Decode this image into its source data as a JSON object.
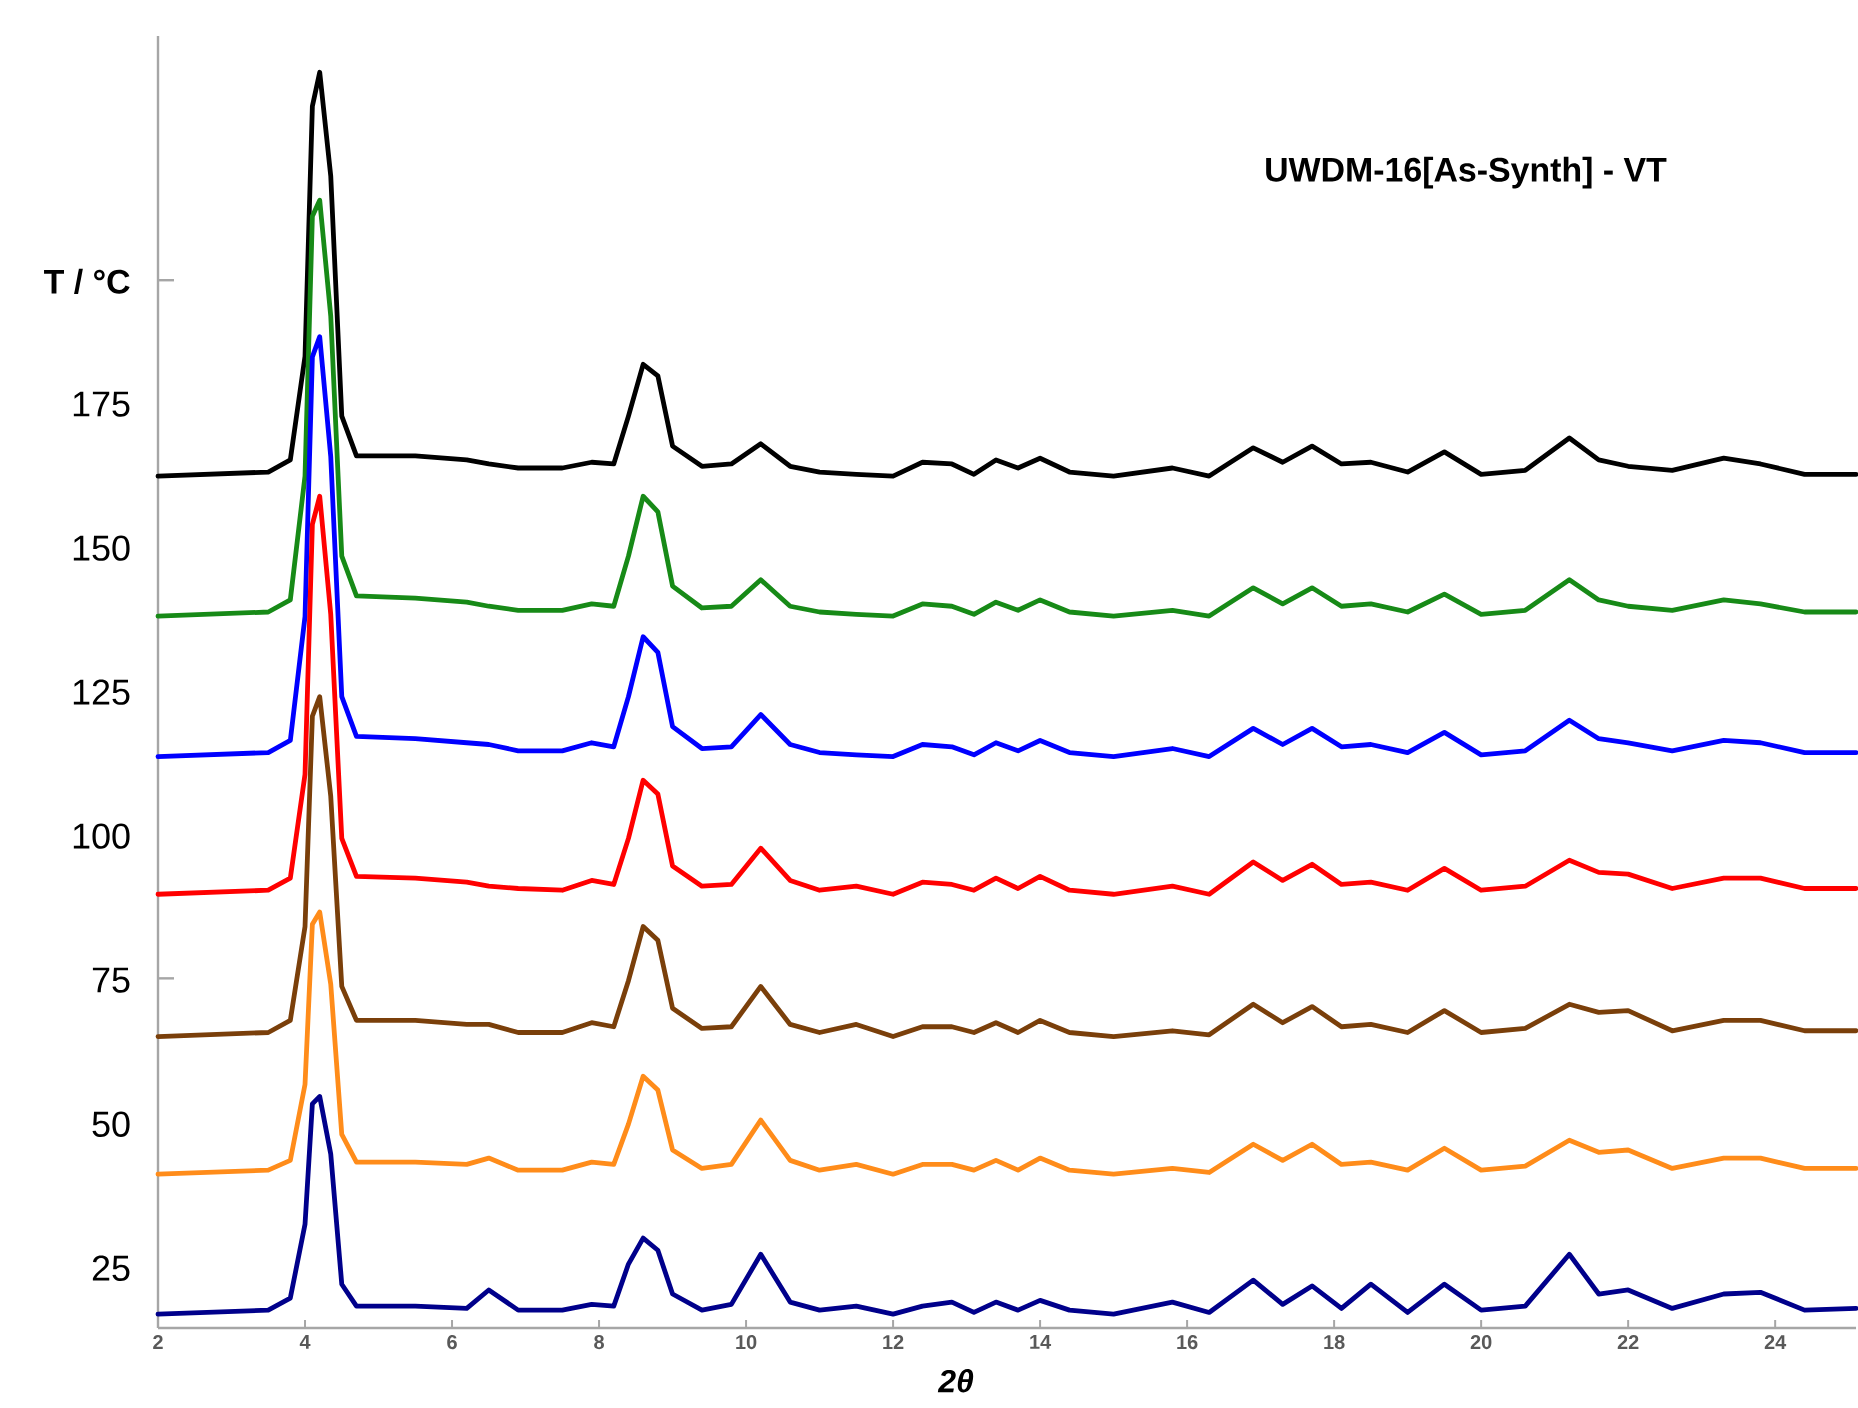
{
  "chart_data": {
    "type": "line",
    "title": "UWDM-16[As-Synth] - VT",
    "xlabel": "2θ",
    "ylabel": "T / °C",
    "xlim": [
      2,
      25.1
    ],
    "xticks": [
      2,
      4,
      6,
      8,
      10,
      12,
      14,
      16,
      18,
      20,
      22,
      24
    ],
    "ylim": [
      16.7,
      241
    ],
    "yticks": [
      25,
      50,
      {
        "value": 77.4,
        "label": null
      },
      75,
      100,
      125,
      150,
      175,
      {
        "value": 198.6,
        "label": null
      }
    ],
    "x": [
      2,
      3.5,
      3.8,
      4.0,
      4.1,
      4.2,
      4.35,
      4.5,
      4.7,
      5.5,
      6.2,
      6.5,
      6.9,
      7.5,
      7.9,
      8.2,
      8.4,
      8.6,
      8.8,
      9.0,
      9.4,
      9.8,
      10.2,
      10.6,
      11.0,
      11.5,
      12.0,
      12.4,
      12.8,
      13.1,
      13.4,
      13.7,
      14.0,
      14.4,
      15.0,
      15.8,
      16.3,
      16.9,
      17.3,
      17.7,
      18.1,
      18.5,
      19.0,
      19.5,
      20.0,
      20.6,
      21.2,
      21.6,
      22.0,
      22.6,
      23.3,
      23.8,
      24.4,
      25.1
    ],
    "series": [
      {
        "color": "#000000",
        "values": [
          164.6,
          165.3,
          167.4,
          185.4,
          228.8,
          234.7,
          216.7,
          175.0,
          168.1,
          168.1,
          167.4,
          166.7,
          166.0,
          166.0,
          167.0,
          166.7,
          175.0,
          184.0,
          182.0,
          169.8,
          166.3,
          166.7,
          170.2,
          166.3,
          165.3,
          164.9,
          164.6,
          167.0,
          166.7,
          164.9,
          167.4,
          166.0,
          167.7,
          165.3,
          164.6,
          166.0,
          164.6,
          169.5,
          167.0,
          169.8,
          166.7,
          167.0,
          165.3,
          168.8,
          164.9,
          165.6,
          171.2,
          167.4,
          166.3,
          165.6,
          167.7,
          166.7,
          164.9,
          164.9
        ]
      },
      {
        "color": "#178a17",
        "values": [
          140.3,
          141.0,
          143.1,
          164.6,
          209.7,
          212.5,
          192.4,
          150.7,
          143.8,
          143.4,
          142.7,
          142.0,
          141.3,
          141.3,
          142.4,
          142.0,
          150.7,
          161.1,
          158.4,
          145.5,
          141.7,
          142.0,
          146.6,
          142.0,
          141.0,
          140.6,
          140.3,
          142.4,
          142.0,
          140.6,
          142.7,
          141.3,
          143.1,
          141.0,
          140.3,
          141.3,
          140.3,
          145.2,
          142.4,
          145.2,
          142.0,
          142.4,
          141.0,
          144.1,
          140.6,
          141.3,
          146.6,
          143.1,
          142.0,
          141.3,
          143.1,
          142.4,
          141.0,
          141.0
        ]
      },
      {
        "color": "#0000ff",
        "values": [
          115.9,
          116.6,
          118.7,
          140.2,
          185.3,
          188.8,
          168.0,
          126.3,
          119.4,
          119.0,
          118.3,
          118.0,
          116.9,
          116.9,
          118.3,
          117.6,
          126.3,
          136.7,
          134.0,
          121.1,
          117.3,
          117.6,
          123.2,
          118.0,
          116.6,
          116.2,
          115.9,
          118.0,
          117.6,
          116.2,
          118.3,
          116.9,
          118.7,
          116.6,
          115.9,
          117.3,
          115.9,
          120.8,
          118.0,
          120.8,
          117.6,
          118.0,
          116.6,
          120.1,
          116.2,
          116.9,
          122.2,
          119.0,
          118.3,
          116.9,
          118.7,
          118.3,
          116.6,
          116.6
        ]
      },
      {
        "color": "#ff0000",
        "values": [
          92.0,
          92.7,
          94.8,
          112.8,
          156.2,
          161.1,
          140.6,
          101.7,
          95.1,
          94.8,
          94.1,
          93.4,
          93.0,
          92.7,
          94.4,
          93.7,
          101.7,
          111.8,
          109.4,
          96.9,
          93.4,
          93.7,
          100.0,
          94.4,
          92.7,
          93.4,
          92.0,
          94.1,
          93.7,
          92.7,
          94.8,
          93.0,
          95.1,
          92.7,
          92.0,
          93.4,
          92.0,
          97.6,
          94.4,
          97.2,
          93.7,
          94.1,
          92.7,
          96.5,
          92.7,
          93.4,
          97.9,
          95.8,
          95.5,
          93.0,
          94.8,
          94.8,
          93.0,
          93.0
        ]
      },
      {
        "color": "#7a3f0a",
        "values": [
          67.3,
          68.0,
          70.1,
          86.4,
          122.9,
          126.3,
          109.0,
          76.0,
          70.1,
          70.1,
          69.4,
          69.4,
          68.0,
          68.0,
          69.7,
          69.0,
          77.0,
          86.4,
          84.0,
          72.2,
          68.7,
          69.0,
          76.0,
          69.4,
          68.0,
          69.4,
          67.3,
          69.0,
          69.0,
          68.0,
          69.7,
          68.0,
          70.1,
          68.0,
          67.3,
          68.3,
          67.6,
          72.9,
          69.7,
          72.5,
          69.0,
          69.4,
          68.0,
          71.8,
          68.0,
          68.7,
          72.9,
          71.5,
          71.8,
          68.3,
          70.1,
          70.1,
          68.3,
          68.3
        ]
      },
      {
        "color": "#ff8c1a",
        "values": [
          43.4,
          44.1,
          45.8,
          59.0,
          86.8,
          88.9,
          76.4,
          50.3,
          45.5,
          45.5,
          45.1,
          46.2,
          44.1,
          44.1,
          45.5,
          45.1,
          52.1,
          60.4,
          58.0,
          47.6,
          44.4,
          45.1,
          52.8,
          45.8,
          44.1,
          45.1,
          43.4,
          45.1,
          45.1,
          44.1,
          45.8,
          44.1,
          46.2,
          44.1,
          43.4,
          44.4,
          43.7,
          48.6,
          45.8,
          48.6,
          45.1,
          45.5,
          44.1,
          47.9,
          44.1,
          44.8,
          49.3,
          47.2,
          47.6,
          44.4,
          46.2,
          46.2,
          44.4,
          44.4
        ]
      },
      {
        "color": "#00008b",
        "values": [
          19.1,
          19.8,
          21.9,
          34.7,
          55.6,
          56.9,
          46.9,
          24.3,
          20.5,
          20.5,
          20.1,
          23.3,
          19.8,
          19.8,
          20.8,
          20.5,
          27.8,
          32.3,
          30.2,
          22.6,
          19.8,
          20.8,
          29.5,
          21.2,
          19.8,
          20.5,
          19.1,
          20.5,
          21.2,
          19.4,
          21.2,
          19.8,
          21.5,
          19.8,
          19.1,
          21.2,
          19.4,
          25.0,
          20.8,
          24.0,
          20.1,
          24.3,
          19.4,
          24.3,
          19.8,
          20.5,
          29.5,
          22.6,
          23.3,
          20.1,
          22.6,
          22.9,
          19.8,
          20.1
        ]
      }
    ]
  }
}
